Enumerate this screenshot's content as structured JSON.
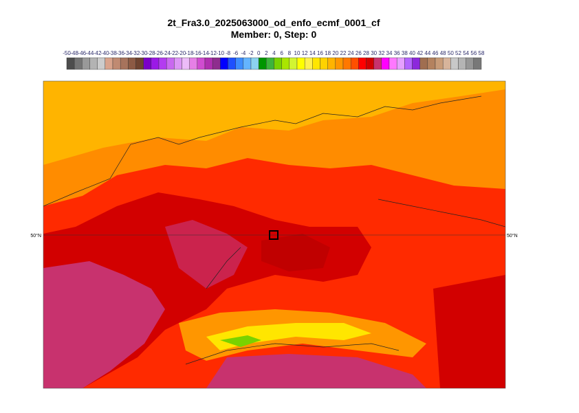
{
  "title": "2t_Fra3.0_2025063000_od_enfo_ecmf_0001_cf",
  "subtitle": "Member: 0, Step: 0",
  "colorbar": {
    "labels": [
      -50,
      -48,
      -46,
      -44,
      -42,
      -40,
      -38,
      -36,
      -34,
      -32,
      -30,
      -28,
      -26,
      -24,
      -22,
      -20,
      -18,
      -16,
      -14,
      -12,
      -10,
      -8,
      -6,
      -4,
      -2,
      0,
      2,
      4,
      6,
      8,
      10,
      12,
      14,
      16,
      18,
      20,
      22,
      24,
      26,
      28,
      30,
      32,
      34,
      36,
      38,
      40,
      42,
      44,
      46,
      48,
      50,
      52,
      54,
      56,
      58
    ],
    "colors": [
      "#4d4d4d",
      "#747474",
      "#999999",
      "#b3b3b3",
      "#cccccc",
      "#d9a38c",
      "#c08a72",
      "#a7735c",
      "#8c5a44",
      "#6f4330",
      "#7a00c8",
      "#9b19e6",
      "#b33cf0",
      "#c968f0",
      "#dc96f5",
      "#ecbcf8",
      "#e67fe6",
      "#d04cd0",
      "#b02fb0",
      "#8e2d8e",
      "#0000ff",
      "#1e50ff",
      "#3c8cff",
      "#64b4ff",
      "#8cd2f0",
      "#009600",
      "#3cb43c",
      "#78d200",
      "#aae600",
      "#d2f532",
      "#ffff00",
      "#fff050",
      "#ffe600",
      "#ffd200",
      "#ffb400",
      "#ff9600",
      "#ff7800",
      "#ff5000",
      "#ff0000",
      "#d20000",
      "#c8326e",
      "#ff00ff",
      "#ff78ff",
      "#e6a0ff",
      "#b464ff",
      "#8c28dc",
      "#a06e50",
      "#b4825f",
      "#c89b78",
      "#d7b49b",
      "#c8c8c8",
      "#b4b4b4",
      "#969696",
      "#787878"
    ]
  },
  "lat_label_left": "50°N",
  "lat_label_right": "50°N"
}
